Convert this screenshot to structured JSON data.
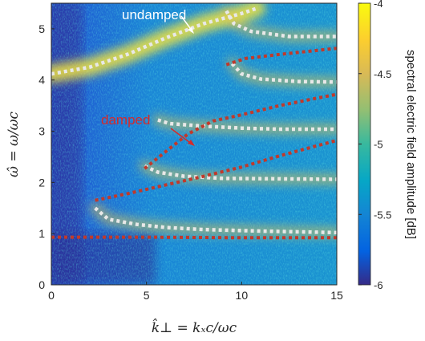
{
  "chart_data": {
    "type": "heatmap",
    "xlabel": "k̂⊥ = kₓc/ωc",
    "ylabel": "ω̂ = ω/ωc",
    "xlim": [
      0,
      15
    ],
    "ylim": [
      0,
      5.5
    ],
    "x_ticks": [
      0,
      5,
      10,
      15
    ],
    "x_tick_labels": [
      "0",
      "5",
      "10",
      "15"
    ],
    "y_ticks": [
      0,
      1,
      2,
      3,
      4,
      5
    ],
    "y_tick_labels": [
      "0",
      "1",
      "2",
      "3",
      "4",
      "5"
    ],
    "colorbar": {
      "label": "spectral electric field amplitude [dB]",
      "range": [
        -6,
        -4
      ],
      "ticks": [
        -6,
        -5.5,
        -5,
        -4.5,
        -4
      ],
      "tick_labels": [
        "-6",
        "-5.5",
        "-5",
        "-4.5",
        "-4"
      ],
      "colormap": "parula"
    },
    "annotations": [
      {
        "text": "undamped",
        "color": "#ffffff",
        "at": [
          8.3,
          4.95
        ]
      },
      {
        "text": "damped",
        "color": "#d62a2a",
        "at": [
          7.6,
          3.0
        ]
      }
    ],
    "series": [
      {
        "name": "undamped",
        "color": "#e8e8e8",
        "style": "dotted",
        "curves": [
          [
            [
              0,
              4.12
            ],
            [
              2,
              4.25
            ],
            [
              4,
              4.5
            ],
            [
              6,
              4.82
            ],
            [
              8,
              5.1
            ],
            [
              10,
              5.3
            ],
            [
              10.8,
              5.4
            ]
          ],
          [
            [
              9.2,
              5.35
            ],
            [
              9.6,
              5.1
            ],
            [
              10.5,
              4.95
            ],
            [
              12.5,
              4.85
            ],
            [
              15,
              4.85
            ]
          ],
          [
            [
              9.5,
              4.32
            ],
            [
              10,
              4.12
            ],
            [
              11,
              4.02
            ],
            [
              13,
              3.97
            ],
            [
              15,
              3.96
            ]
          ],
          [
            [
              5.6,
              3.22
            ],
            [
              6.2,
              3.15
            ],
            [
              8,
              3.1
            ],
            [
              10,
              3.06
            ],
            [
              12,
              3.04
            ],
            [
              15,
              3.04
            ]
          ],
          [
            [
              4.9,
              2.32
            ],
            [
              5.6,
              2.2
            ],
            [
              7,
              2.12
            ],
            [
              9,
              2.08
            ],
            [
              12,
              2.07
            ],
            [
              15,
              2.06
            ]
          ],
          [
            [
              2.3,
              1.5
            ],
            [
              3,
              1.28
            ],
            [
              4.5,
              1.18
            ],
            [
              6,
              1.12
            ],
            [
              8,
              1.08
            ],
            [
              11,
              1.05
            ],
            [
              15,
              1.02
            ]
          ]
        ]
      },
      {
        "name": "damped",
        "color": "#c0392b",
        "style": "dotted",
        "curves": [
          [
            [
              0,
              0.93
            ],
            [
              5,
              0.93
            ],
            [
              10,
              0.92
            ],
            [
              15,
              0.92
            ]
          ],
          [
            [
              2.3,
              1.65
            ],
            [
              4,
              1.78
            ],
            [
              6,
              1.95
            ],
            [
              8,
              2.12
            ],
            [
              10,
              2.3
            ],
            [
              12,
              2.52
            ],
            [
              14,
              2.72
            ],
            [
              15,
              2.82
            ]
          ],
          [
            [
              4.9,
              2.27
            ],
            [
              6,
              2.6
            ],
            [
              7.2,
              2.95
            ],
            [
              8.5,
              3.2
            ],
            [
              10,
              3.32
            ],
            [
              12,
              3.5
            ],
            [
              14,
              3.65
            ],
            [
              15,
              3.72
            ]
          ],
          [
            [
              9.2,
              4.3
            ],
            [
              10.2,
              4.42
            ],
            [
              12,
              4.5
            ],
            [
              14,
              4.58
            ],
            [
              15,
              4.62
            ]
          ]
        ]
      }
    ]
  }
}
